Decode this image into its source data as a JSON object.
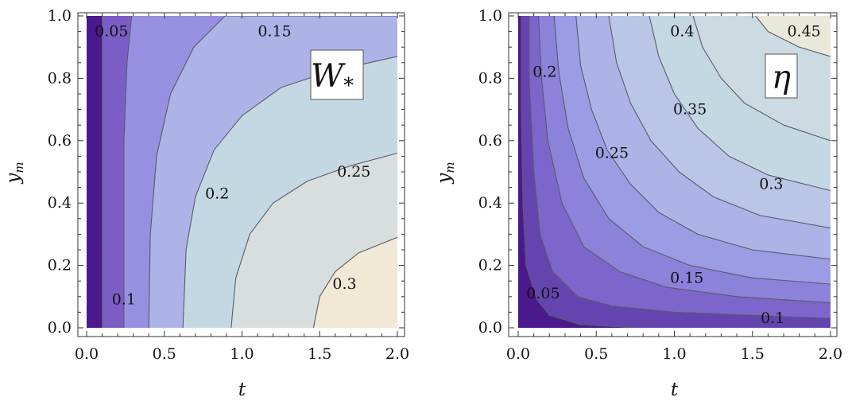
{
  "chart_data": [
    {
      "type": "contour",
      "panel_label": "W",
      "panel_label_sub": "*",
      "xlabel": "t",
      "ylabel": "y",
      "ylabel_sub": "m",
      "xlim": [
        0,
        2
      ],
      "ylim": [
        0,
        1
      ],
      "x_ticks": [
        "0.0",
        "0.5",
        "1.0",
        "1.5",
        "2.0"
      ],
      "y_ticks": [
        "0.0",
        "0.2",
        "0.4",
        "0.6",
        "0.8",
        "1.0"
      ],
      "fills": [
        "#4a1a8c",
        "#7a5ec6",
        "#9790e0",
        "#adb3e6",
        "#c4d8e4",
        "#d8dedd",
        "#f2e8d6"
      ],
      "contours": [
        {
          "level": 0.05,
          "points": [
            [
              0.1,
              0.0
            ],
            [
              0.1,
              1.0
            ]
          ]
        },
        {
          "level": 0.1,
          "points": [
            [
              0.24,
              0.0
            ],
            [
              0.24,
              0.6
            ],
            [
              0.26,
              0.85
            ],
            [
              0.29,
              1.0
            ]
          ]
        },
        {
          "level": 0.15,
          "points": [
            [
              0.4,
              0.0
            ],
            [
              0.41,
              0.3
            ],
            [
              0.45,
              0.55
            ],
            [
              0.54,
              0.75
            ],
            [
              0.69,
              0.9
            ],
            [
              0.89,
              1.0
            ],
            [
              2.0,
              1.0
            ]
          ]
        },
        {
          "level": 0.2,
          "points": [
            [
              0.62,
              0.0
            ],
            [
              0.64,
              0.25
            ],
            [
              0.7,
              0.42
            ],
            [
              0.82,
              0.57
            ],
            [
              1.0,
              0.68
            ],
            [
              1.25,
              0.77
            ],
            [
              1.55,
              0.82
            ],
            [
              2.0,
              0.87
            ]
          ]
        },
        {
          "level": 0.25,
          "points": [
            [
              0.93,
              0.0
            ],
            [
              0.96,
              0.16
            ],
            [
              1.05,
              0.3
            ],
            [
              1.2,
              0.4
            ],
            [
              1.42,
              0.47
            ],
            [
              1.7,
              0.52
            ],
            [
              2.0,
              0.56
            ]
          ]
        },
        {
          "level": 0.3,
          "points": [
            [
              1.46,
              0.0
            ],
            [
              1.5,
              0.1
            ],
            [
              1.6,
              0.18
            ],
            [
              1.75,
              0.24
            ],
            [
              2.0,
              0.29
            ]
          ]
        }
      ],
      "labels": [
        {
          "text": "0.05",
          "x": 0.16,
          "y": 0.95
        },
        {
          "text": "0.15",
          "x": 1.21,
          "y": 0.95
        },
        {
          "text": "0.2",
          "x": 0.84,
          "y": 0.43
        },
        {
          "text": "0.25",
          "x": 1.72,
          "y": 0.5
        },
        {
          "text": "0.1",
          "x": 0.24,
          "y": 0.09
        },
        {
          "text": "0.3",
          "x": 1.66,
          "y": 0.14
        }
      ]
    },
    {
      "type": "contour",
      "panel_label": "η",
      "panel_label_sub": "",
      "xlabel": "t",
      "ylabel": "y",
      "ylabel_sub": "m",
      "xlim": [
        0,
        2
      ],
      "ylim": [
        0,
        1
      ],
      "x_ticks": [
        "0.0",
        "0.5",
        "1.0",
        "1.5",
        "2.0"
      ],
      "y_ticks": [
        "0.0",
        "0.2",
        "0.4",
        "0.6",
        "0.8",
        "1.0"
      ],
      "fills": [
        "#4a1a8c",
        "#6445b0",
        "#7c66cb",
        "#8c82d9",
        "#9c9ce4",
        "#adb3e6",
        "#bac6e6",
        "#c4d8e4",
        "#ccdae2",
        "#d8dedd",
        "#eae8d8"
      ],
      "contours": [
        {
          "level": 0.05,
          "points": [
            [
              0.75,
              0.0
            ],
            [
              0.4,
              0.01
            ],
            [
              0.2,
              0.04
            ],
            [
              0.12,
              0.09
            ],
            [
              0.05,
              0.2
            ],
            [
              0.03,
              0.4
            ],
            [
              0.02,
              0.7
            ],
            [
              0.02,
              1.0
            ]
          ]
        },
        {
          "level": 0.1,
          "points": [
            [
              2.0,
              0.03
            ],
            [
              1.5,
              0.04
            ],
            [
              1.0,
              0.05
            ],
            [
              0.6,
              0.07
            ],
            [
              0.38,
              0.1
            ],
            [
              0.22,
              0.18
            ],
            [
              0.14,
              0.3
            ],
            [
              0.1,
              0.5
            ],
            [
              0.07,
              0.8
            ],
            [
              0.07,
              1.0
            ]
          ]
        },
        {
          "level": 0.15,
          "points": [
            [
              2.0,
              0.08
            ],
            [
              1.4,
              0.1
            ],
            [
              0.95,
              0.13
            ],
            [
              0.65,
              0.18
            ],
            [
              0.42,
              0.26
            ],
            [
              0.28,
              0.4
            ],
            [
              0.19,
              0.6
            ],
            [
              0.15,
              0.8
            ],
            [
              0.13,
              1.0
            ]
          ]
        },
        {
          "level": 0.2,
          "points": [
            [
              2.0,
              0.14
            ],
            [
              1.5,
              0.16
            ],
            [
              1.1,
              0.2
            ],
            [
              0.8,
              0.26
            ],
            [
              0.58,
              0.35
            ],
            [
              0.42,
              0.48
            ],
            [
              0.32,
              0.64
            ],
            [
              0.26,
              0.82
            ],
            [
              0.23,
              1.0
            ]
          ]
        },
        {
          "level": 0.25,
          "points": [
            [
              2.0,
              0.22
            ],
            [
              1.5,
              0.25
            ],
            [
              1.15,
              0.3
            ],
            [
              0.9,
              0.37
            ],
            [
              0.72,
              0.46
            ],
            [
              0.57,
              0.57
            ],
            [
              0.47,
              0.7
            ],
            [
              0.4,
              0.84
            ],
            [
              0.37,
              1.0
            ]
          ]
        },
        {
          "level": 0.3,
          "points": [
            [
              2.0,
              0.32
            ],
            [
              1.55,
              0.36
            ],
            [
              1.25,
              0.42
            ],
            [
              1.03,
              0.5
            ],
            [
              0.85,
              0.6
            ],
            [
              0.72,
              0.72
            ],
            [
              0.63,
              0.85
            ],
            [
              0.58,
              1.0
            ]
          ]
        },
        {
          "level": 0.35,
          "points": [
            [
              2.0,
              0.44
            ],
            [
              1.6,
              0.49
            ],
            [
              1.35,
              0.55
            ],
            [
              1.15,
              0.64
            ],
            [
              1.0,
              0.75
            ],
            [
              0.9,
              0.87
            ],
            [
              0.84,
              1.0
            ]
          ]
        },
        {
          "level": 0.4,
          "points": [
            [
              2.0,
              0.6
            ],
            [
              1.7,
              0.65
            ],
            [
              1.45,
              0.72
            ],
            [
              1.3,
              0.8
            ],
            [
              1.18,
              0.9
            ],
            [
              1.12,
              1.0
            ]
          ]
        },
        {
          "level": 0.45,
          "points": [
            [
              2.0,
              0.87
            ],
            [
              1.8,
              0.9
            ],
            [
              1.6,
              0.95
            ],
            [
              1.52,
              1.0
            ]
          ]
        }
      ],
      "labels": [
        {
          "text": "0.4",
          "x": 1.05,
          "y": 0.95
        },
        {
          "text": "0.45",
          "x": 1.83,
          "y": 0.95
        },
        {
          "text": "0.2",
          "x": 0.17,
          "y": 0.82
        },
        {
          "text": "0.35",
          "x": 1.1,
          "y": 0.7
        },
        {
          "text": "0.25",
          "x": 0.6,
          "y": 0.56
        },
        {
          "text": "0.3",
          "x": 1.62,
          "y": 0.46
        },
        {
          "text": "0.15",
          "x": 1.08,
          "y": 0.16
        },
        {
          "text": "0.05",
          "x": 0.16,
          "y": 0.11
        },
        {
          "text": "0.1",
          "x": 1.63,
          "y": 0.03
        }
      ]
    }
  ]
}
